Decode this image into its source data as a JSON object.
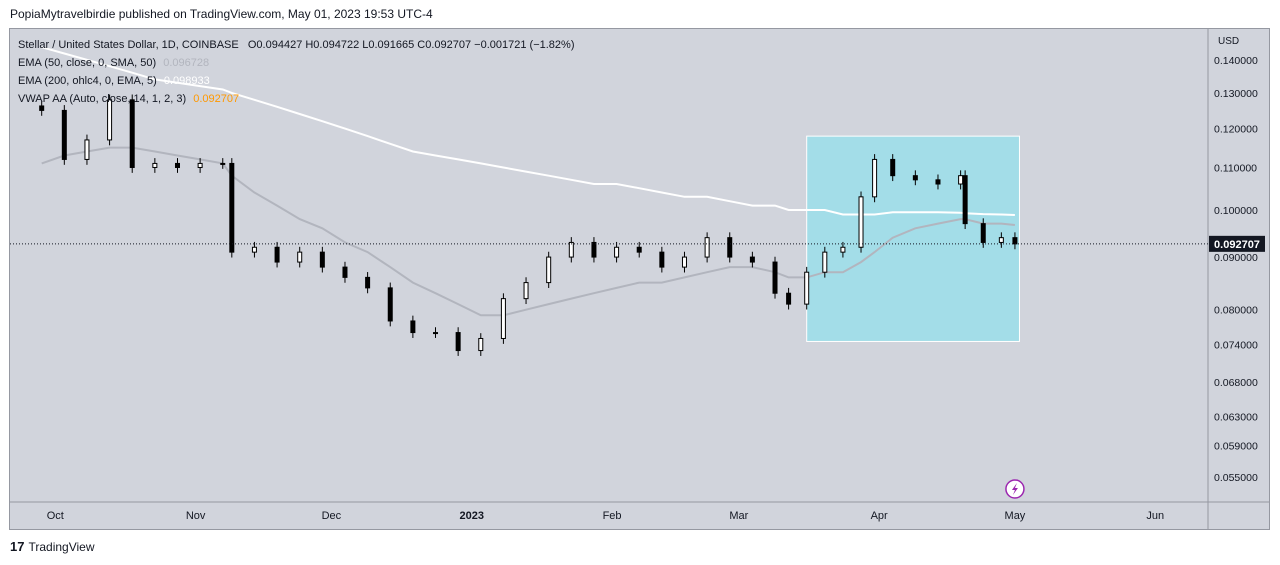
{
  "published": "PopiaMytravelbirdie published on TradingView.com, May 01, 2023 19:53 UTC-4",
  "legend": {
    "symbol": "Stellar / United States Dollar, 1D, COINBASE",
    "ohlc": "O0.094427  H0.094722  L0.091665  C0.092707  −0.001721 (−1.82%)",
    "ema50_label": "EMA (50, close, 0, SMA, 50)",
    "ema50_value": "0.096728",
    "ema200_label": "EMA (200, ohlc4, 0, EMA, 5)",
    "ema200_value": "0.098933",
    "vwap_label": "VWAP AA (Auto, close, 14, 1, 2, 3)",
    "vwap_value": "0.092707"
  },
  "footer": {
    "logo": "17",
    "brand": "TradingView"
  },
  "colors": {
    "ema50": "#b2b5be",
    "ema200": "#ffffff",
    "vwap": "#ff9800",
    "highlight": "#a3dde8",
    "candle": "#000000"
  },
  "chart_data": {
    "type": "candlestick",
    "currency": "USD",
    "last_price": "0.092707",
    "yticks": [
      "0.140000",
      "0.130000",
      "0.120000",
      "0.110000",
      "0.100000",
      "0.090000",
      "0.080000",
      "0.074000",
      "0.068000",
      "0.063000",
      "0.059000",
      "0.055000"
    ],
    "xticks": [
      "Oct",
      "Nov",
      "Dec",
      "2023",
      "Feb",
      "Mar",
      "Apr",
      "May",
      "Jun"
    ],
    "ylim": [
      0.052,
      0.15
    ],
    "scale": "log",
    "x": [
      "2022-09-28",
      "2022-10-03",
      "2022-10-08",
      "2022-10-13",
      "2022-10-18",
      "2022-10-23",
      "2022-10-28",
      "2022-11-02",
      "2022-11-07",
      "2022-11-09",
      "2022-11-14",
      "2022-11-19",
      "2022-11-24",
      "2022-11-29",
      "2022-12-04",
      "2022-12-09",
      "2022-12-14",
      "2022-12-19",
      "2022-12-24",
      "2022-12-29",
      "2023-01-03",
      "2023-01-08",
      "2023-01-13",
      "2023-01-18",
      "2023-01-23",
      "2023-01-28",
      "2023-02-02",
      "2023-02-07",
      "2023-02-12",
      "2023-02-17",
      "2023-02-22",
      "2023-02-27",
      "2023-03-04",
      "2023-03-09",
      "2023-03-12",
      "2023-03-16",
      "2023-03-20",
      "2023-03-24",
      "2023-03-28",
      "2023-03-31",
      "2023-04-04",
      "2023-04-09",
      "2023-04-14",
      "2023-04-19",
      "2023-04-20",
      "2023-04-24",
      "2023-04-28",
      "2023-05-01"
    ],
    "close": [
      0.125,
      0.112,
      0.117,
      0.128,
      0.11,
      0.111,
      0.11,
      0.111,
      0.111,
      0.091,
      0.092,
      0.089,
      0.091,
      0.088,
      0.086,
      0.084,
      0.078,
      0.076,
      0.076,
      0.073,
      0.075,
      0.082,
      0.085,
      0.09,
      0.093,
      0.09,
      0.092,
      0.091,
      0.088,
      0.09,
      0.094,
      0.09,
      0.089,
      0.083,
      0.081,
      0.087,
      0.091,
      0.092,
      0.103,
      0.112,
      0.108,
      0.107,
      0.106,
      0.108,
      0.097,
      0.093,
      0.094,
      0.0927
    ],
    "ema50": [
      0.111,
      0.113,
      0.114,
      0.115,
      0.115,
      0.114,
      0.113,
      0.112,
      0.111,
      0.108,
      0.104,
      0.101,
      0.098,
      0.096,
      0.093,
      0.091,
      0.088,
      0.085,
      0.083,
      0.081,
      0.079,
      0.079,
      0.08,
      0.081,
      0.082,
      0.083,
      0.084,
      0.085,
      0.085,
      0.086,
      0.087,
      0.088,
      0.088,
      0.087,
      0.086,
      0.086,
      0.087,
      0.087,
      0.089,
      0.091,
      0.094,
      0.096,
      0.097,
      0.098,
      0.098,
      0.097,
      0.097,
      0.0967
    ],
    "ema200": [
      0.144,
      0.142,
      0.14,
      0.138,
      0.136,
      0.134,
      0.133,
      0.132,
      0.131,
      0.13,
      0.128,
      0.126,
      0.124,
      0.122,
      0.12,
      0.118,
      0.116,
      0.114,
      0.113,
      0.112,
      0.111,
      0.11,
      0.109,
      0.108,
      0.107,
      0.106,
      0.106,
      0.105,
      0.104,
      0.103,
      0.103,
      0.102,
      0.101,
      0.101,
      0.1,
      0.1,
      0.1,
      0.099,
      0.099,
      0.099,
      0.0995,
      0.0995,
      0.0995,
      0.0994,
      0.0993,
      0.0991,
      0.099,
      0.0989
    ]
  }
}
